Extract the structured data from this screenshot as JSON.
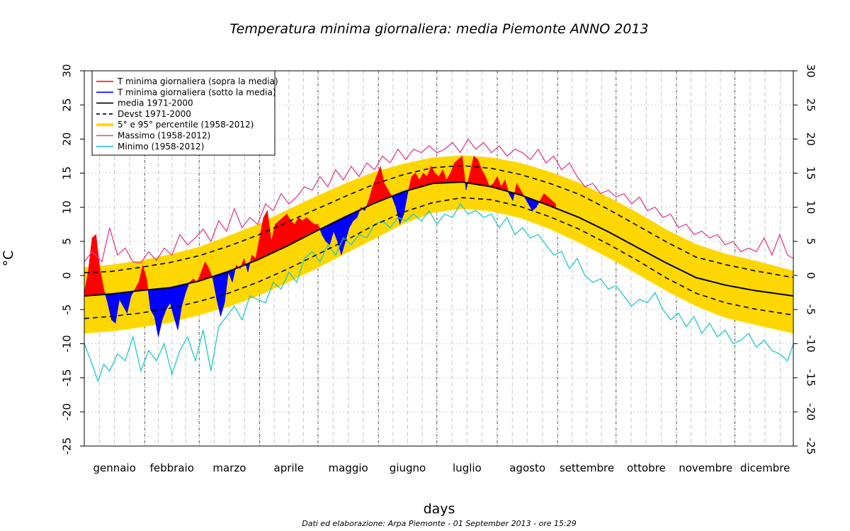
{
  "chart_data": {
    "type": "line",
    "title": "Temperatura minima giornaliera: media Piemonte ANNO 2013",
    "xlabel": "days",
    "ylabel": "°C",
    "footer": "Dati ed elaborazione: Arpa Piemonte - 01 September 2013 - ore 15:29",
    "ylim": [
      -25,
      30
    ],
    "xlim": [
      1,
      365
    ],
    "yticks": [
      30,
      25,
      20,
      15,
      10,
      5,
      0,
      -5,
      -10,
      -15,
      -20,
      -25
    ],
    "grid": true,
    "legend_position": "top-left",
    "month_labels": [
      "gennaio",
      "febbraio",
      "marzo",
      "aprile",
      "maggio",
      "giugno",
      "luglio",
      "agosto",
      "settembre",
      "ottobre",
      "novembre",
      "dicembre"
    ],
    "month_start_days": [
      1,
      32,
      60,
      91,
      121,
      152,
      182,
      213,
      244,
      274,
      305,
      335
    ],
    "colors": {
      "above": "#ff0000",
      "below": "#0000ff",
      "mean": "#000000",
      "devst": "#000000",
      "percentile": "#ffd700",
      "max": "#e0408c",
      "min": "#20c8c8"
    },
    "legend": [
      {
        "label": "T minima giornaliera (sopra la media)",
        "style": "line",
        "color": "#ff0000"
      },
      {
        "label": "T minima giornaliera (sotto la media)",
        "style": "line",
        "color": "#0000ff"
      },
      {
        "label": "media 1971-2000",
        "style": "line",
        "color": "#000000"
      },
      {
        "label": "Devst 1971-2000",
        "style": "dashed",
        "color": "#000000"
      },
      {
        "label": "5° e 95° percentile (1958-2012)",
        "style": "thick",
        "color": "#ffd700"
      },
      {
        "label": "Massimo (1958-2012)",
        "style": "line",
        "color": "#e0408c"
      },
      {
        "label": "Minimo (1958-2012)",
        "style": "line",
        "color": "#20c8c8"
      }
    ],
    "series": [
      {
        "name": "media 1971-2000",
        "x": [
          1,
          15,
          30,
          45,
          60,
          75,
          90,
          105,
          120,
          135,
          150,
          165,
          180,
          195,
          210,
          225,
          240,
          255,
          270,
          285,
          300,
          315,
          330,
          345,
          365
        ],
        "values": [
          -3.0,
          -2.7,
          -2.2,
          -1.8,
          -0.8,
          0.6,
          2.3,
          4.3,
          6.5,
          8.6,
          10.6,
          12.3,
          13.5,
          13.7,
          13.0,
          11.8,
          10.2,
          8.5,
          6.4,
          4.1,
          1.8,
          -0.3,
          -1.4,
          -2.2,
          -3.0
        ]
      },
      {
        "name": "Devst 1971-2000 (upper)",
        "x": [
          1,
          15,
          30,
          45,
          60,
          75,
          90,
          105,
          120,
          135,
          150,
          165,
          180,
          195,
          210,
          225,
          240,
          255,
          270,
          285,
          300,
          315,
          330,
          345,
          365
        ],
        "values": [
          0.4,
          0.6,
          1.2,
          1.9,
          2.9,
          4.3,
          5.9,
          7.8,
          9.7,
          11.6,
          13.4,
          14.8,
          15.8,
          16.1,
          15.7,
          14.8,
          13.5,
          11.9,
          9.7,
          7.3,
          4.9,
          2.7,
          1.6,
          0.7,
          -0.3
        ]
      },
      {
        "name": "Devst 1971-2000 (lower)",
        "x": [
          1,
          15,
          30,
          45,
          60,
          75,
          90,
          105,
          120,
          135,
          150,
          165,
          180,
          195,
          210,
          225,
          240,
          255,
          270,
          285,
          300,
          315,
          330,
          345,
          365
        ],
        "values": [
          -6.3,
          -6.0,
          -5.5,
          -4.8,
          -3.8,
          -2.6,
          -1.0,
          0.9,
          3.0,
          5.1,
          7.4,
          9.3,
          10.7,
          11.4,
          11.1,
          10.1,
          8.6,
          6.8,
          4.6,
          2.2,
          -0.4,
          -2.6,
          -4.0,
          -4.9,
          -5.8
        ]
      },
      {
        "name": "5° percentile (1958-2012)",
        "x": [
          1,
          15,
          30,
          45,
          60,
          75,
          90,
          105,
          120,
          135,
          150,
          165,
          180,
          195,
          210,
          225,
          240,
          255,
          270,
          285,
          300,
          315,
          330,
          345,
          365
        ],
        "values": [
          -8.5,
          -8.2,
          -7.6,
          -6.9,
          -5.8,
          -4.6,
          -3.0,
          -1.1,
          1.0,
          3.2,
          5.4,
          7.6,
          9.2,
          9.8,
          9.4,
          8.4,
          6.8,
          4.8,
          2.6,
          0.2,
          -2.3,
          -4.5,
          -6.2,
          -7.2,
          -8.5
        ]
      },
      {
        "name": "95° percentile (1958-2012)",
        "x": [
          1,
          15,
          30,
          45,
          60,
          75,
          90,
          105,
          120,
          135,
          150,
          165,
          180,
          195,
          210,
          225,
          240,
          255,
          270,
          285,
          300,
          315,
          330,
          345,
          365
        ],
        "values": [
          1.2,
          1.6,
          2.2,
          3.1,
          4.2,
          5.8,
          7.5,
          9.6,
          11.6,
          13.5,
          15.2,
          16.4,
          17.3,
          17.6,
          17.3,
          16.5,
          15.2,
          13.6,
          11.5,
          9.2,
          6.7,
          4.6,
          3.2,
          2.2,
          0.7
        ]
      },
      {
        "name": "Massimo (1958-2012)",
        "x": [
          1,
          5,
          10,
          14,
          18,
          22,
          26,
          30,
          34,
          38,
          42,
          46,
          50,
          54,
          58,
          62,
          66,
          70,
          74,
          78,
          82,
          86,
          90,
          94,
          98,
          102,
          106,
          110,
          114,
          118,
          122,
          126,
          130,
          134,
          138,
          142,
          146,
          150,
          154,
          158,
          162,
          166,
          170,
          174,
          178,
          182,
          186,
          190,
          194,
          198,
          202,
          206,
          210,
          214,
          218,
          222,
          226,
          230,
          234,
          238,
          242,
          246,
          250,
          254,
          258,
          262,
          266,
          270,
          274,
          278,
          282,
          286,
          290,
          294,
          298,
          302,
          306,
          310,
          314,
          318,
          322,
          326,
          330,
          334,
          338,
          342,
          346,
          350,
          354,
          358,
          362,
          365
        ],
        "values": [
          2.0,
          3.5,
          2.0,
          7.0,
          3.0,
          4.0,
          2.0,
          1.8,
          3.5,
          2.2,
          4.0,
          3.0,
          6.0,
          4.5,
          5.5,
          6.8,
          5.0,
          8.0,
          6.5,
          9.8,
          7.0,
          8.5,
          7.5,
          10.5,
          9.5,
          12.0,
          10.5,
          11.5,
          13.0,
          12.5,
          14.5,
          13.0,
          15.5,
          14.0,
          16.0,
          14.5,
          16.5,
          15.5,
          17.5,
          16.5,
          18.5,
          17.0,
          18.5,
          18.0,
          19.0,
          18.0,
          18.5,
          19.5,
          18.0,
          20.0,
          18.5,
          19.5,
          18.0,
          19.0,
          17.5,
          18.5,
          18.0,
          17.0,
          18.5,
          16.5,
          17.5,
          15.5,
          16.5,
          14.5,
          13.0,
          13.5,
          12.0,
          12.5,
          11.5,
          12.0,
          10.5,
          11.5,
          9.5,
          10.0,
          8.5,
          9.0,
          7.0,
          7.5,
          6.0,
          6.5,
          5.5,
          6.0,
          4.5,
          5.0,
          3.5,
          4.0,
          3.5,
          5.5,
          3.0,
          6.0,
          3.0,
          2.5
        ]
      },
      {
        "name": "Minimo (1958-2012)",
        "x": [
          1,
          5,
          8,
          11,
          14,
          18,
          22,
          26,
          30,
          34,
          38,
          42,
          46,
          50,
          54,
          58,
          62,
          66,
          70,
          74,
          78,
          82,
          86,
          90,
          94,
          98,
          102,
          106,
          110,
          114,
          118,
          122,
          126,
          130,
          134,
          138,
          142,
          146,
          150,
          154,
          158,
          162,
          166,
          170,
          174,
          178,
          182,
          186,
          190,
          194,
          198,
          202,
          206,
          210,
          214,
          218,
          222,
          226,
          230,
          234,
          238,
          242,
          246,
          250,
          254,
          258,
          262,
          266,
          270,
          274,
          278,
          282,
          286,
          290,
          294,
          298,
          302,
          306,
          310,
          314,
          318,
          322,
          326,
          330,
          334,
          338,
          342,
          346,
          350,
          354,
          358,
          362,
          365
        ],
        "values": [
          -10.0,
          -13.0,
          -15.5,
          -13.0,
          -14.0,
          -11.5,
          -12.5,
          -9.0,
          -14.0,
          -11.0,
          -12.5,
          -10.0,
          -14.5,
          -11.0,
          -9.0,
          -12.5,
          -8.0,
          -14.0,
          -7.5,
          -6.0,
          -4.5,
          -6.5,
          -3.0,
          -3.5,
          -4.0,
          -1.0,
          -2.0,
          0.5,
          -1.0,
          2.5,
          3.5,
          2.0,
          4.5,
          3.0,
          5.5,
          4.5,
          6.0,
          5.5,
          7.5,
          8.0,
          7.0,
          8.5,
          8.0,
          9.0,
          8.0,
          9.5,
          7.5,
          9.0,
          8.5,
          10.5,
          9.0,
          9.5,
          8.5,
          9.0,
          7.0,
          8.5,
          6.0,
          7.0,
          5.5,
          6.0,
          4.5,
          3.0,
          3.5,
          1.0,
          2.5,
          0.0,
          -1.0,
          -0.5,
          -2.0,
          -1.5,
          -3.0,
          -4.5,
          -3.5,
          -4.0,
          -2.5,
          -5.0,
          -6.5,
          -5.5,
          -7.5,
          -6.0,
          -8.5,
          -7.0,
          -9.0,
          -8.0,
          -10.0,
          -9.5,
          -8.5,
          -10.5,
          -9.5,
          -11.0,
          -11.5,
          -12.5,
          -10.0
        ]
      },
      {
        "name": "T minima giornaliera 2013",
        "x": [
          1,
          3,
          5,
          7,
          9,
          11,
          13,
          15,
          17,
          19,
          21,
          23,
          25,
          27,
          29,
          31,
          33,
          35,
          37,
          39,
          41,
          43,
          45,
          47,
          49,
          51,
          53,
          55,
          57,
          59,
          61,
          63,
          65,
          67,
          69,
          71,
          73,
          75,
          77,
          79,
          81,
          83,
          85,
          87,
          89,
          91,
          93,
          95,
          97,
          99,
          101,
          103,
          105,
          107,
          109,
          111,
          113,
          115,
          117,
          119,
          121,
          123,
          125,
          127,
          129,
          131,
          133,
          135,
          137,
          139,
          141,
          143,
          145,
          147,
          149,
          151,
          153,
          155,
          157,
          159,
          161,
          163,
          165,
          167,
          169,
          171,
          173,
          175,
          177,
          179,
          181,
          183,
          185,
          187,
          189,
          191,
          193,
          195,
          197,
          199,
          201,
          203,
          205,
          207,
          209,
          211,
          213,
          215,
          217,
          219,
          221,
          223,
          225,
          227,
          229,
          231,
          233,
          235,
          237,
          239,
          241,
          243
        ],
        "values": [
          -2.5,
          0.5,
          5.5,
          6.0,
          1.0,
          -2.0,
          -4.0,
          -6.5,
          -7.0,
          -3.5,
          -4.5,
          -5.5,
          -3.0,
          -2.0,
          -1.0,
          1.5,
          -0.5,
          -5.0,
          -6.0,
          -9.0,
          -6.5,
          -5.0,
          -4.0,
          -6.0,
          -8.0,
          -4.5,
          -2.5,
          -1.0,
          -0.5,
          -1.0,
          0.5,
          2.0,
          1.0,
          -0.5,
          -3.5,
          -6.0,
          -4.0,
          0.5,
          -1.0,
          1.5,
          1.0,
          2.5,
          0.5,
          3.0,
          2.5,
          5.5,
          8.5,
          9.5,
          5.0,
          7.5,
          8.0,
          8.5,
          9.0,
          8.0,
          7.5,
          8.5,
          8.0,
          8.5,
          8.0,
          7.5,
          7.5,
          6.0,
          5.0,
          4.5,
          6.5,
          5.0,
          3.0,
          5.0,
          7.0,
          8.0,
          8.5,
          10.0,
          9.5,
          11.0,
          13.0,
          14.5,
          16.0,
          13.5,
          12.5,
          11.5,
          10.0,
          7.5,
          9.0,
          12.0,
          14.5,
          15.0,
          14.0,
          15.0,
          14.5,
          16.0,
          15.0,
          14.5,
          15.5,
          14.0,
          15.0,
          16.5,
          17.0,
          17.5,
          12.5,
          15.0,
          17.5,
          17.0,
          15.5,
          14.5,
          13.0,
          13.5,
          14.5,
          13.0,
          14.0,
          12.0,
          11.0,
          13.5,
          12.5,
          11.5,
          10.5,
          9.5,
          10.0,
          11.0,
          12.0,
          11.5,
          11.0,
          10.5
        ]
      }
    ]
  }
}
